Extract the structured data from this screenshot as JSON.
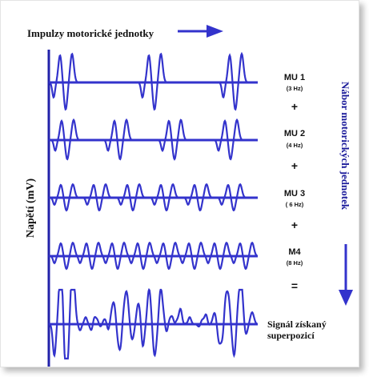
{
  "header": {
    "title": "Impulzy motorické jednotky"
  },
  "axis": {
    "y_label": "Napětí (mV)"
  },
  "side": {
    "label": "Nábor motorických jednotek"
  },
  "units": [
    {
      "name": "MU 1",
      "freq": "(3 Hz)"
    },
    {
      "name": "MU 2",
      "freq": "(4 Hz)"
    },
    {
      "name": "MU 3",
      "freq": "( 6 Hz)"
    },
    {
      "name": "M4",
      "freq": "(8 Hz)"
    }
  ],
  "operators": {
    "plus": "+",
    "equals": "="
  },
  "result": {
    "line1": "Signál získaný",
    "line2": "superpozicí"
  },
  "colors": {
    "trace": "#3333cc",
    "axis": "#2222aa",
    "text": "#111111",
    "blue_text": "#1a1a9a"
  }
}
